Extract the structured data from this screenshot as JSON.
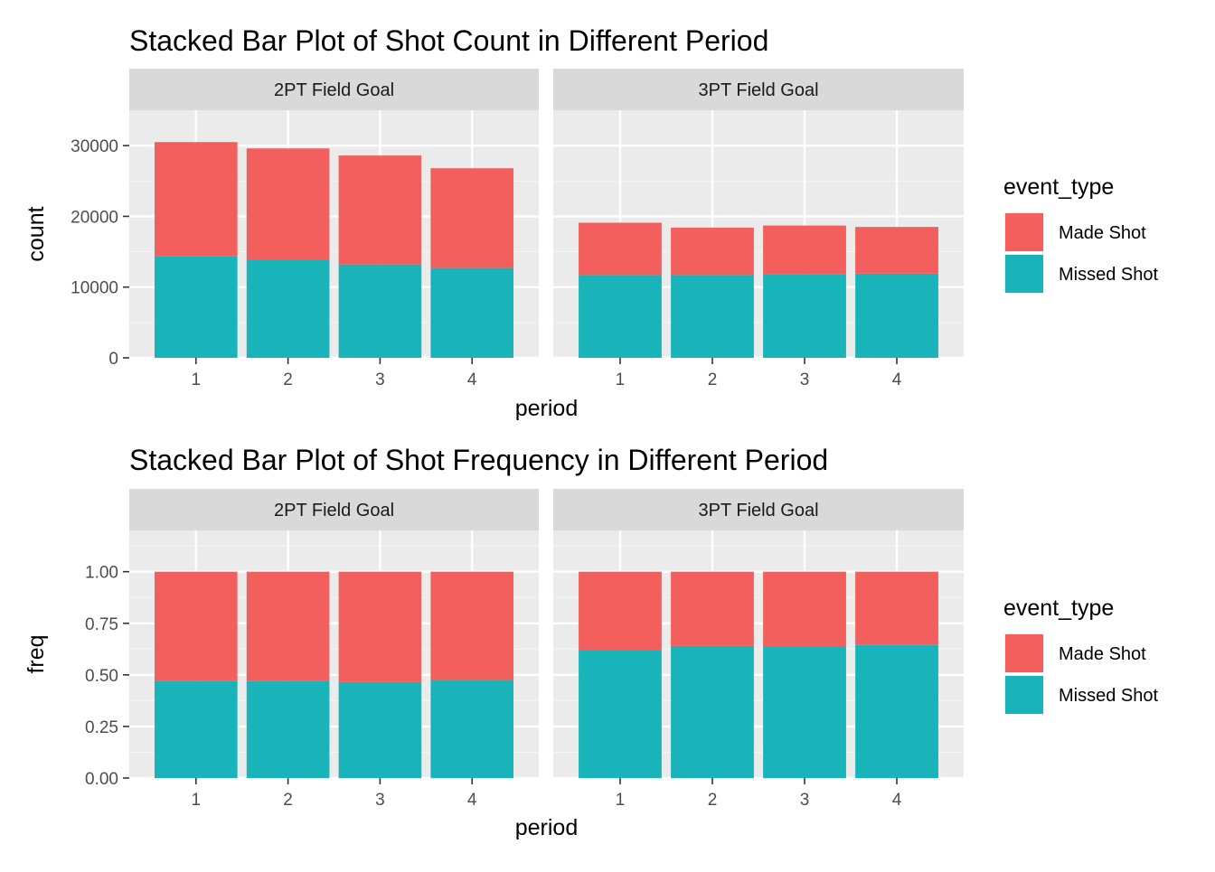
{
  "colors": {
    "made": "#F8766D",
    "made_fill": "#F25F5C",
    "missed": "#19B4B9",
    "panel_bg": "#EBEBEB",
    "strip_bg": "#D9D9D9",
    "grid_major": "#FFFFFF",
    "grid_minor": "#F4F4F4"
  },
  "chart_data": [
    {
      "type": "bar",
      "stacked": true,
      "title": "Stacked Bar Plot of Shot Count in Different Period",
      "xlabel": "period",
      "ylabel": "count",
      "ylim": [
        0,
        35000
      ],
      "yticks": [
        0,
        10000,
        20000,
        30000
      ],
      "ytick_labels": [
        "0",
        "10000",
        "20000",
        "30000"
      ],
      "categories": [
        "1",
        "2",
        "3",
        "4"
      ],
      "legend": {
        "title": "event_type",
        "position": "right"
      },
      "facets": [
        {
          "label": "2PT Field Goal",
          "series": [
            {
              "name": "Missed Shot",
              "values": [
                14400,
                13800,
                13200,
                12700
              ]
            },
            {
              "name": "Made Shot",
              "values": [
                16100,
                15800,
                15400,
                14100
              ]
            }
          ]
        },
        {
          "label": "3PT Field Goal",
          "series": [
            {
              "name": "Missed Shot",
              "values": [
                11700,
                11700,
                11800,
                11900
              ]
            },
            {
              "name": "Made Shot",
              "values": [
                7400,
                6700,
                6900,
                6600
              ]
            }
          ]
        }
      ]
    },
    {
      "type": "bar",
      "stacked": true,
      "title": "Stacked Bar Plot of Shot Frequency in Different Period",
      "xlabel": "period",
      "ylabel": "freq",
      "ylim": [
        0,
        1.2
      ],
      "yticks": [
        0,
        0.25,
        0.5,
        0.75,
        1.0
      ],
      "ytick_labels": [
        "0.00",
        "0.25",
        "0.50",
        "0.75",
        "1.00"
      ],
      "categories": [
        "1",
        "2",
        "3",
        "4"
      ],
      "legend": {
        "title": "event_type",
        "position": "right"
      },
      "facets": [
        {
          "label": "2PT Field Goal",
          "series": [
            {
              "name": "Missed Shot",
              "values": [
                0.47,
                0.47,
                0.465,
                0.475
              ]
            },
            {
              "name": "Made Shot",
              "values": [
                0.53,
                0.53,
                0.535,
                0.525
              ]
            }
          ]
        },
        {
          "label": "3PT Field Goal",
          "series": [
            {
              "name": "Missed Shot",
              "values": [
                0.62,
                0.64,
                0.635,
                0.645
              ]
            },
            {
              "name": "Made Shot",
              "values": [
                0.38,
                0.36,
                0.365,
                0.355
              ]
            }
          ]
        }
      ]
    }
  ]
}
